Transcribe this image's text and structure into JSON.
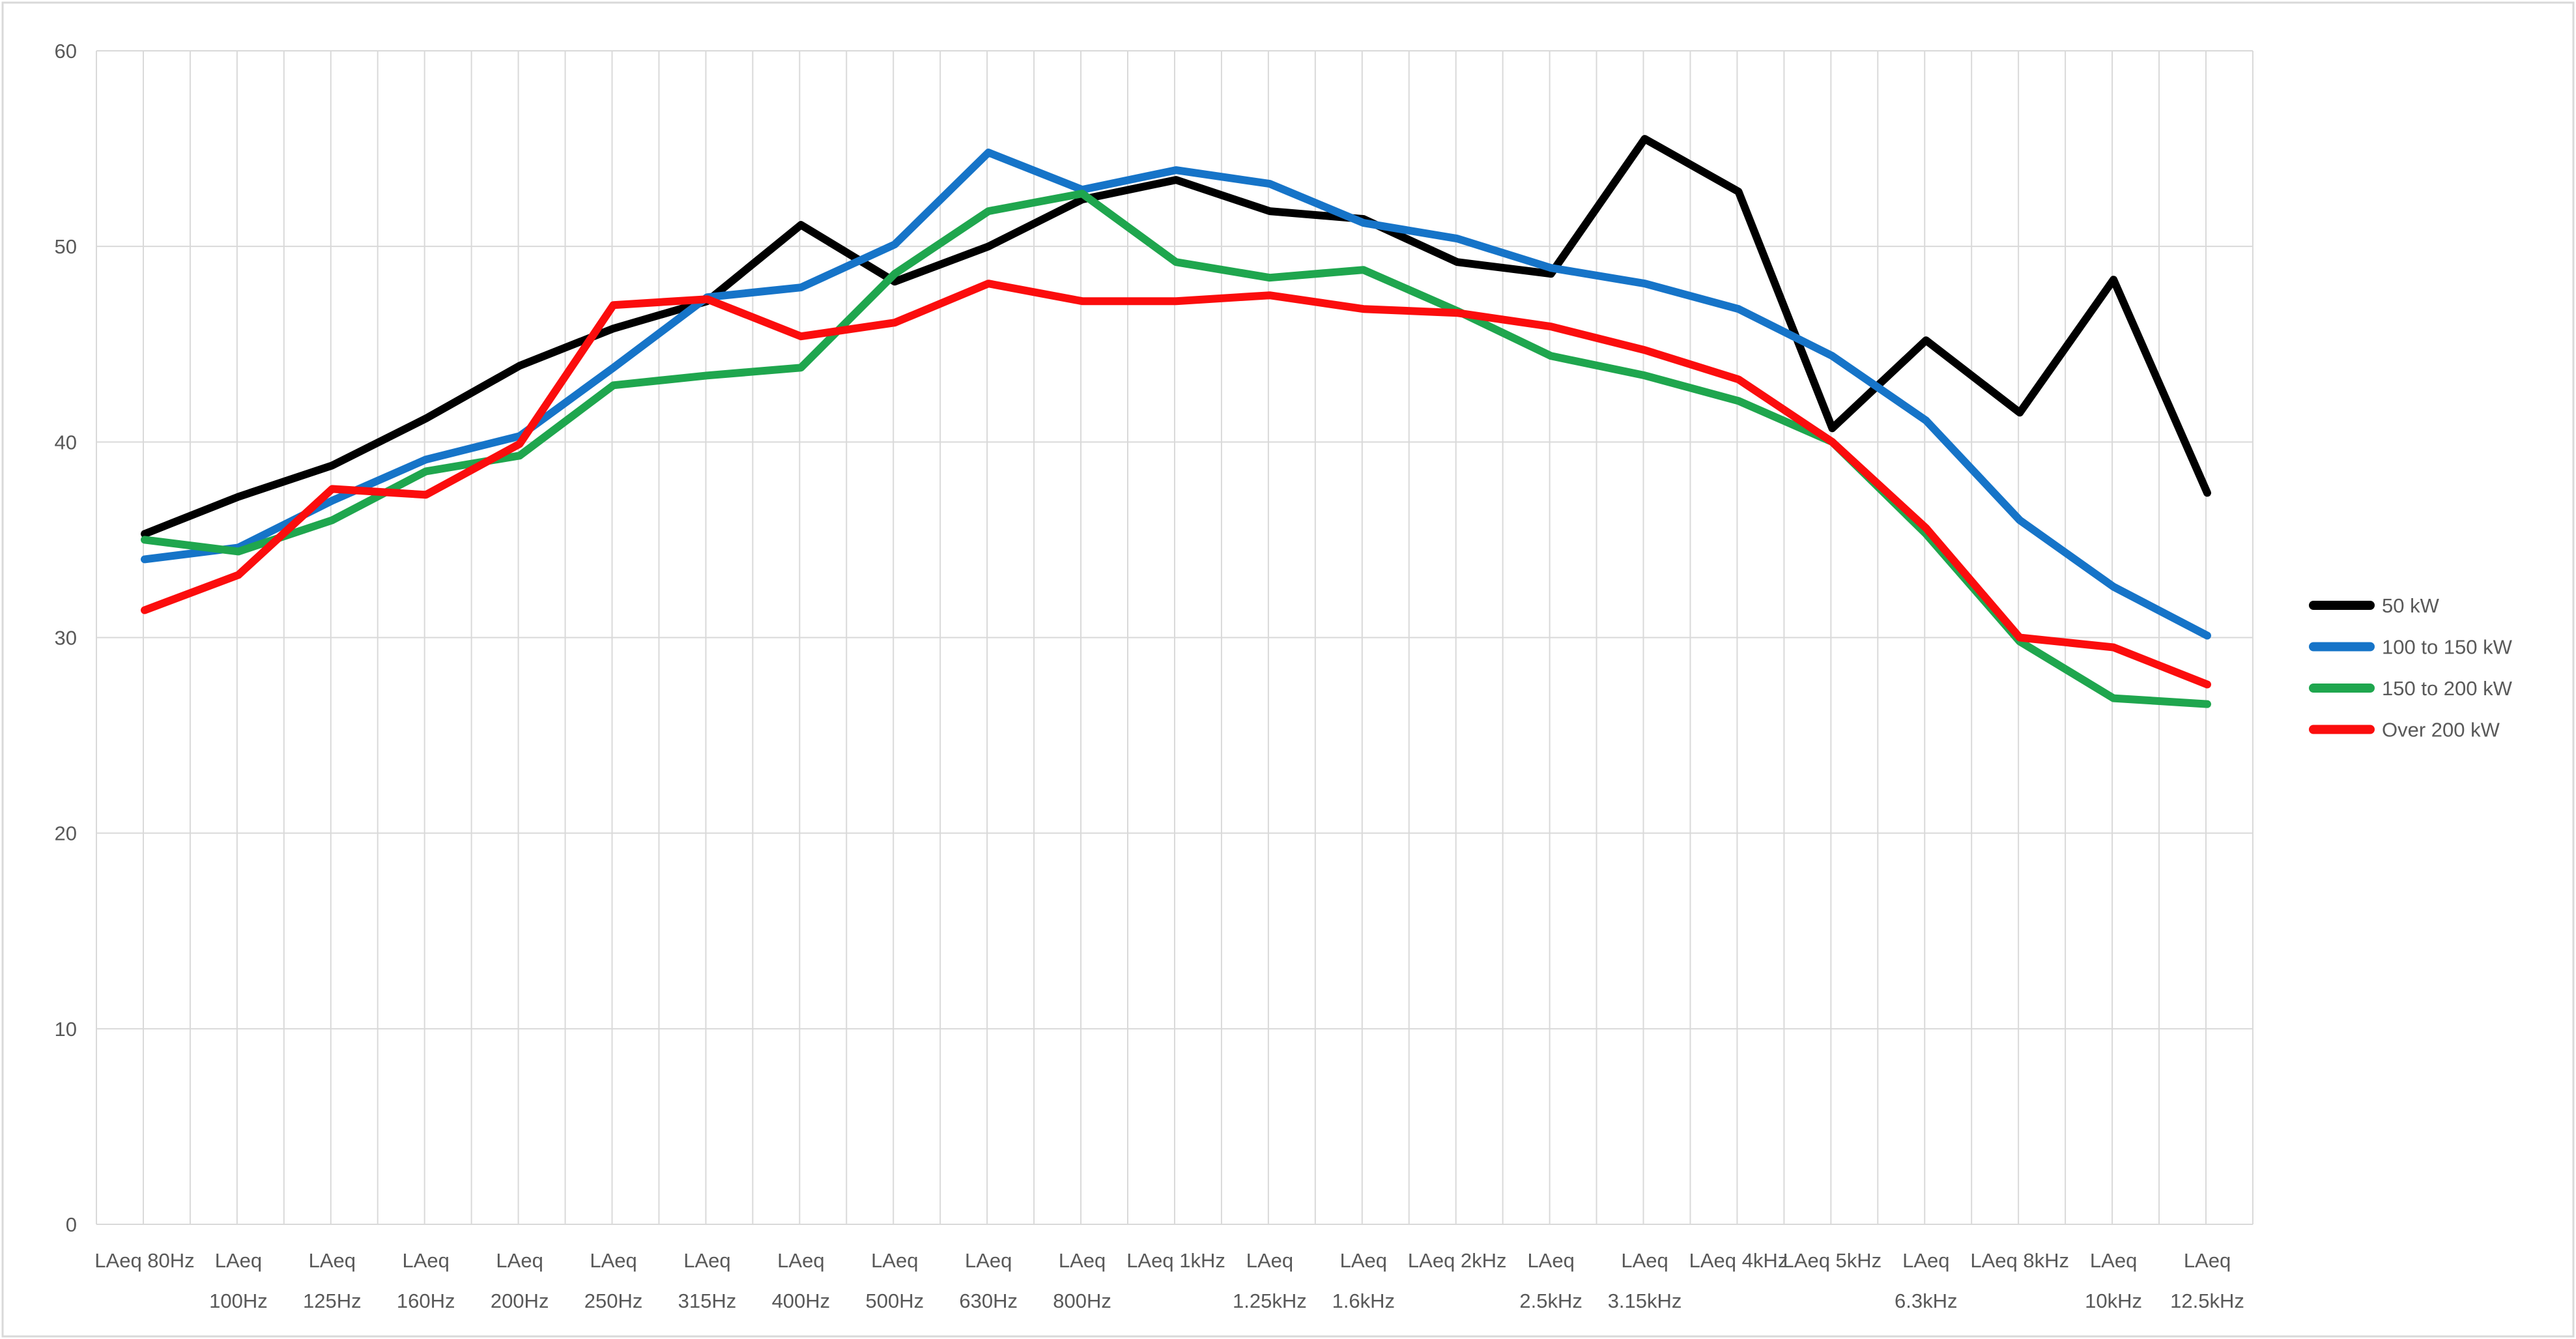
{
  "chart_data": {
    "type": "line",
    "title": "",
    "xlabel": "",
    "ylabel": "",
    "ylim": [
      0,
      60
    ],
    "ytick_step": 10,
    "y_tick_labels": [
      "0",
      "10",
      "20",
      "30",
      "40",
      "50",
      "60"
    ],
    "grid": true,
    "legend_position": "right",
    "categories": [
      "LAeq 80Hz",
      "LAeq 100Hz",
      "LAeq 125Hz",
      "LAeq 160Hz",
      "LAeq 200Hz",
      "LAeq 250Hz",
      "LAeq 315Hz",
      "LAeq 400Hz",
      "LAeq 500Hz",
      "LAeq 630Hz",
      "LAeq 800Hz",
      "LAeq 1kHz",
      "LAeq 1.25kHz",
      "LAeq 1.6kHz",
      "LAeq 2kHz",
      "LAeq 2.5kHz",
      "LAeq 3.15kHz",
      "LAeq 4kHz",
      "LAeq 5kHz",
      "LAeq 6.3kHz",
      "LAeq 8kHz",
      "LAeq 10kHz",
      "LAeq 12.5kHz"
    ],
    "category_label_wrapped": [
      false,
      true,
      true,
      true,
      true,
      true,
      true,
      true,
      true,
      true,
      true,
      false,
      true,
      true,
      false,
      true,
      true,
      false,
      false,
      true,
      false,
      true,
      true
    ],
    "series": [
      {
        "name": "50 kW",
        "color": "#000000",
        "values": [
          35.3,
          37.2,
          38.8,
          41.2,
          43.9,
          45.8,
          47.2,
          51.1,
          48.2,
          50.0,
          52.4,
          53.4,
          51.8,
          51.4,
          49.2,
          48.6,
          55.5,
          52.8,
          40.7,
          45.2,
          41.5,
          48.3,
          37.4
        ]
      },
      {
        "name": "100 to 150 kW",
        "color": "#1674c8",
        "values": [
          34.0,
          34.6,
          37.0,
          39.1,
          40.3,
          43.8,
          47.4,
          47.9,
          50.1,
          54.8,
          52.9,
          53.9,
          53.2,
          51.2,
          50.4,
          48.9,
          48.1,
          46.8,
          44.4,
          41.1,
          36.0,
          32.6,
          30.1
        ]
      },
      {
        "name": "150 to 200 kW",
        "color": "#1fa64e",
        "values": [
          35.0,
          34.4,
          36.0,
          38.5,
          39.3,
          42.9,
          43.4,
          43.8,
          48.6,
          51.8,
          52.7,
          49.2,
          48.4,
          48.8,
          46.7,
          44.4,
          43.4,
          42.1,
          40.0,
          35.3,
          29.8,
          26.9,
          26.6
        ]
      },
      {
        "name": "Over 200 kW",
        "color": "#fb0d0d",
        "values": [
          31.4,
          33.2,
          37.6,
          37.3,
          39.9,
          47.0,
          47.3,
          45.4,
          46.1,
          48.1,
          47.2,
          47.2,
          47.5,
          46.8,
          46.6,
          45.9,
          44.7,
          43.2,
          40.0,
          35.6,
          30.0,
          29.5,
          27.6
        ]
      }
    ]
  }
}
